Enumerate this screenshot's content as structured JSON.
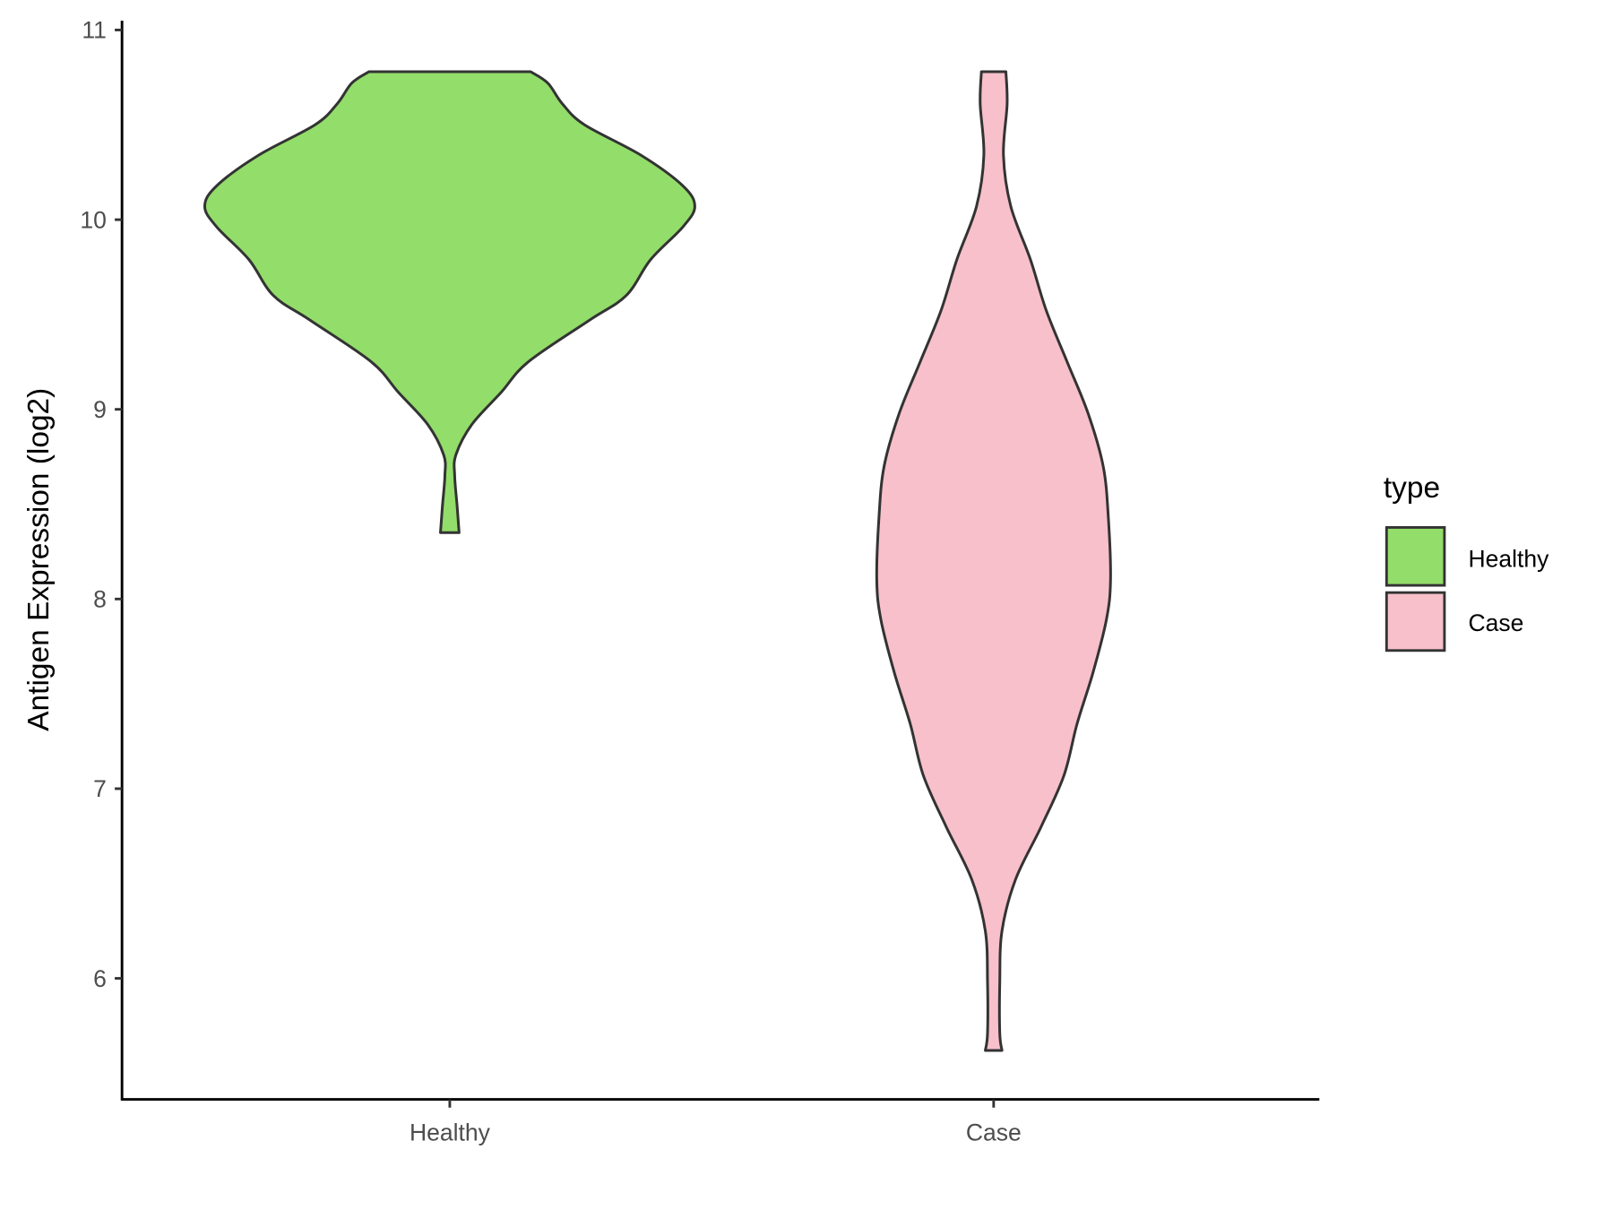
{
  "chart_data": {
    "type": "violin",
    "title": "",
    "xlabel": "",
    "ylabel": "Antigen Expression (log2)",
    "ylim": [
      5.4,
      11.05
    ],
    "yticks": [
      6,
      7,
      8,
      9,
      10,
      11
    ],
    "categories": [
      "Healthy",
      "Case"
    ],
    "legend": {
      "title": "type",
      "placement": "right",
      "entries": [
        "Healthy",
        "Case"
      ]
    },
    "series": [
      {
        "name": "Healthy",
        "color": "#93DD6A",
        "min": 8.35,
        "max": 10.78,
        "profile": {
          "y": [
            10.78,
            10.72,
            10.61,
            10.5,
            10.34,
            10.18,
            10.07,
            9.96,
            9.79,
            9.6,
            9.47,
            9.25,
            9.09,
            8.92,
            8.76,
            8.65,
            8.49,
            8.35
          ],
          "density": [
            0.33,
            0.4,
            0.46,
            0.55,
            0.78,
            0.95,
            1.0,
            0.95,
            0.82,
            0.72,
            0.57,
            0.32,
            0.21,
            0.09,
            0.025,
            0.02,
            0.03,
            0.038
          ]
        }
      },
      {
        "name": "Case",
        "color": "#F7C0CB",
        "min": 5.62,
        "max": 10.78,
        "profile": {
          "y": [
            10.78,
            10.61,
            10.34,
            10.07,
            9.79,
            9.52,
            9.25,
            8.98,
            8.7,
            8.43,
            8.1,
            7.89,
            7.61,
            7.34,
            7.07,
            6.8,
            6.52,
            6.25,
            5.98,
            5.71,
            5.62
          ],
          "density": [
            0.05,
            0.055,
            0.04,
            0.07,
            0.15,
            0.215,
            0.3,
            0.385,
            0.447,
            0.468,
            0.477,
            0.46,
            0.405,
            0.34,
            0.287,
            0.194,
            0.089,
            0.034,
            0.025,
            0.025,
            0.034
          ]
        }
      }
    ]
  }
}
